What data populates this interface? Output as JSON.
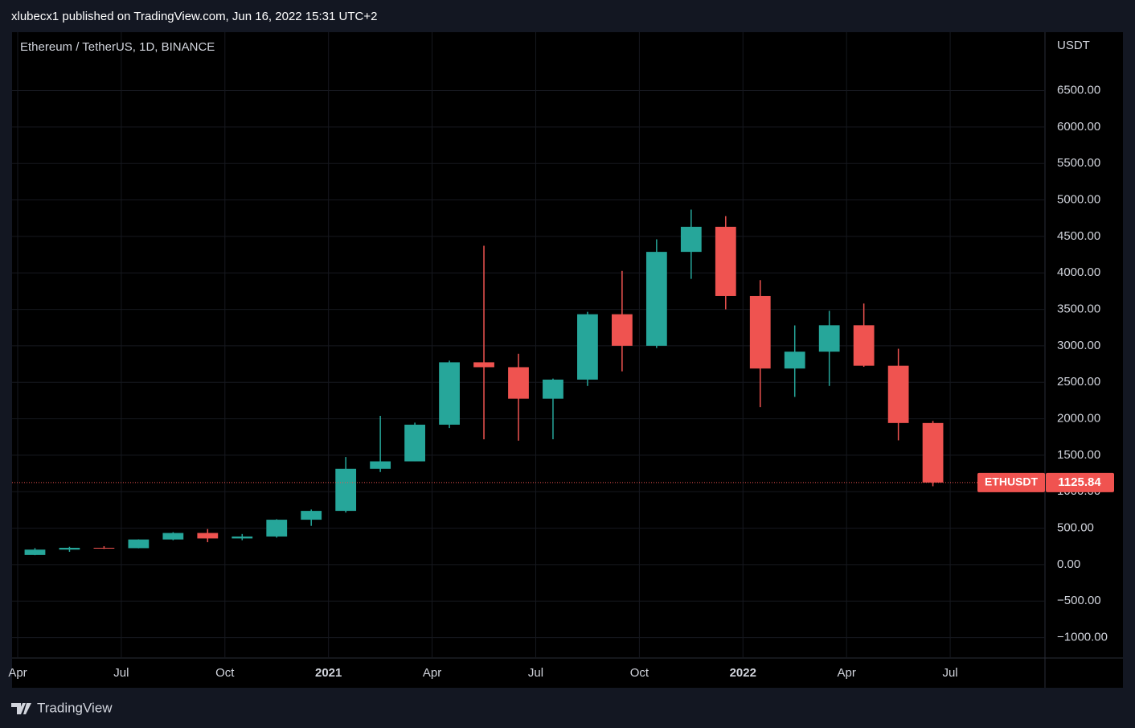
{
  "header": "xlubecx1 published on TradingView.com, Jun 16, 2022 15:31 UTC+2",
  "footer": "TradingView",
  "chart_data": {
    "type": "candlestick",
    "title": "Ethereum / TetherUS, 1D, BINANCE",
    "y_unit": "USDT",
    "x": [
      "2020-04",
      "2020-05",
      "2020-06",
      "2020-07",
      "2020-08",
      "2020-09",
      "2020-10",
      "2020-11",
      "2020-12",
      "2021-01",
      "2021-02",
      "2021-03",
      "2021-04",
      "2021-05",
      "2021-06",
      "2021-07",
      "2021-08",
      "2021-09",
      "2021-10",
      "2021-11",
      "2021-12",
      "2022-01",
      "2022-02",
      "2022-03",
      "2022-04",
      "2022-05",
      "2022-06"
    ],
    "open": [
      133,
      206,
      231,
      226,
      345,
      434,
      359,
      386,
      616,
      737,
      1314,
      1416,
      1919,
      2774,
      2707,
      2275,
      2537,
      3433,
      3001,
      4288,
      4632,
      3683,
      2689,
      2920,
      3282,
      2727,
      1942
    ],
    "high": [
      227,
      245,
      253,
      347,
      445,
      488,
      420,
      623,
      756,
      1476,
      2040,
      1947,
      2797,
      4372,
      2891,
      2551,
      3466,
      4027,
      4460,
      4868,
      4778,
      3900,
      3280,
      3480,
      3580,
      2960,
      1970
    ],
    "low": [
      130,
      176,
      216,
      224,
      335,
      308,
      335,
      370,
      532,
      714,
      1270,
      1416,
      1873,
      1719,
      1700,
      1719,
      2450,
      2650,
      2970,
      3918,
      3500,
      2159,
      2300,
      2450,
      2712,
      1704,
      1075
    ],
    "close": [
      206,
      231,
      226,
      345,
      434,
      359,
      386,
      616,
      737,
      1314,
      1416,
      1919,
      2774,
      2707,
      2275,
      2537,
      3433,
      3001,
      4288,
      4632,
      3683,
      2689,
      2920,
      3282,
      2727,
      1942,
      1125.84
    ],
    "up_color": "#26a69a",
    "down_color": "#ef5350",
    "xlim": [
      "2020-04",
      "2022-09"
    ],
    "xticks": [
      {
        "value": "2020-04",
        "label": "Apr"
      },
      {
        "value": "2020-07",
        "label": "Jul"
      },
      {
        "value": "2020-10",
        "label": "Oct"
      },
      {
        "value": "2021-01",
        "label": "2021"
      },
      {
        "value": "2021-04",
        "label": "Apr"
      },
      {
        "value": "2021-07",
        "label": "Jul"
      },
      {
        "value": "2021-10",
        "label": "Oct"
      },
      {
        "value": "2022-01",
        "label": "2022"
      },
      {
        "value": "2022-04",
        "label": "Apr"
      },
      {
        "value": "2022-07",
        "label": "Jul"
      }
    ],
    "ylim": [
      -1280,
      7300
    ],
    "yticks": [
      {
        "value": -1000,
        "label": "−1000.00"
      },
      {
        "value": -500,
        "label": "−500.00"
      },
      {
        "value": 0,
        "label": "0.00"
      },
      {
        "value": 500,
        "label": "500.00"
      },
      {
        "value": 1000,
        "label": "1000.00"
      },
      {
        "value": 1500,
        "label": "1500.00"
      },
      {
        "value": 2000,
        "label": "2000.00"
      },
      {
        "value": 2500,
        "label": "2500.00"
      },
      {
        "value": 3000,
        "label": "3000.00"
      },
      {
        "value": 3500,
        "label": "3500.00"
      },
      {
        "value": 4000,
        "label": "4000.00"
      },
      {
        "value": 4500,
        "label": "4500.00"
      },
      {
        "value": 5000,
        "label": "5000.00"
      },
      {
        "value": 5500,
        "label": "5500.00"
      },
      {
        "value": 6000,
        "label": "6000.00"
      },
      {
        "value": 6500,
        "label": "6500.00"
      }
    ],
    "grid": true,
    "last_price": {
      "symbol": "ETHUSDT",
      "value": 1125.84,
      "color": "#f05350"
    }
  }
}
